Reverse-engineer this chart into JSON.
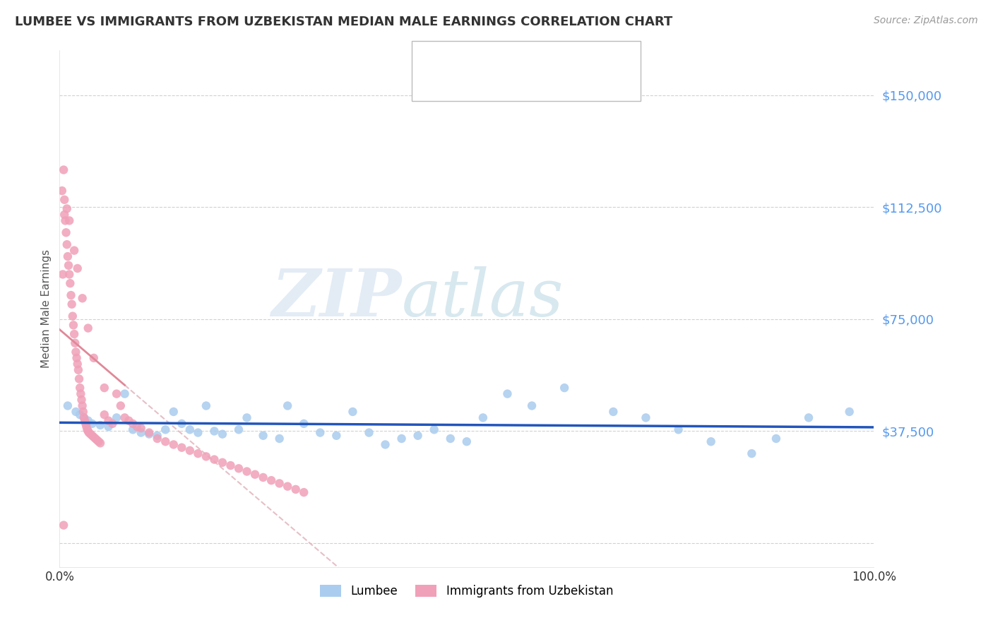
{
  "title": "LUMBEE VS IMMIGRANTS FROM UZBEKISTAN MEDIAN MALE EARNINGS CORRELATION CHART",
  "source": "Source: ZipAtlas.com",
  "ylabel": "Median Male Earnings",
  "xlim": [
    0,
    1.0
  ],
  "ylim": [
    -8000,
    165000
  ],
  "yticks": [
    0,
    37500,
    75000,
    112500,
    150000
  ],
  "ytick_labels": [
    "",
    "$37,500",
    "$75,000",
    "$112,500",
    "$150,000"
  ],
  "xtick_labels": [
    "0.0%",
    "100.0%"
  ],
  "background_color": "#ffffff",
  "grid_color": "#cccccc",
  "lumbee_color": "#aaccee",
  "uzbek_color": "#f0a0b8",
  "lumbee_line_color": "#2255bb",
  "uzbek_line_color": "#e08898",
  "uzbek_dash_color": "#e0b0b8",
  "watermark_zip": "ZIP",
  "watermark_atlas": "atlas",
  "lumbee_x": [
    0.01,
    0.02,
    0.025,
    0.03,
    0.035,
    0.04,
    0.05,
    0.06,
    0.07,
    0.08,
    0.09,
    0.1,
    0.11,
    0.12,
    0.13,
    0.14,
    0.15,
    0.16,
    0.17,
    0.18,
    0.19,
    0.2,
    0.22,
    0.23,
    0.25,
    0.27,
    0.28,
    0.3,
    0.32,
    0.34,
    0.36,
    0.38,
    0.4,
    0.42,
    0.44,
    0.46,
    0.48,
    0.5,
    0.52,
    0.55,
    0.58,
    0.62,
    0.68,
    0.72,
    0.76,
    0.8,
    0.85,
    0.88,
    0.92,
    0.97
  ],
  "lumbee_y": [
    46000,
    44000,
    43000,
    42000,
    41000,
    40000,
    39500,
    39000,
    42000,
    50000,
    38000,
    37000,
    36500,
    36000,
    38000,
    44000,
    40000,
    38000,
    37000,
    46000,
    37500,
    36500,
    38000,
    42000,
    36000,
    35000,
    46000,
    40000,
    37000,
    36000,
    44000,
    37000,
    33000,
    35000,
    36000,
    38000,
    35000,
    34000,
    42000,
    50000,
    46000,
    52000,
    44000,
    42000,
    38000,
    34000,
    30000,
    35000,
    42000,
    44000
  ],
  "uzbek_x": [
    0.004,
    0.005,
    0.006,
    0.007,
    0.008,
    0.009,
    0.01,
    0.011,
    0.012,
    0.013,
    0.014,
    0.015,
    0.016,
    0.017,
    0.018,
    0.019,
    0.02,
    0.021,
    0.022,
    0.023,
    0.024,
    0.025,
    0.026,
    0.027,
    0.028,
    0.029,
    0.03,
    0.031,
    0.032,
    0.033,
    0.034,
    0.035,
    0.036,
    0.038,
    0.04,
    0.042,
    0.044,
    0.046,
    0.048,
    0.05,
    0.055,
    0.06,
    0.065,
    0.07,
    0.075,
    0.08,
    0.085,
    0.09,
    0.095,
    0.1,
    0.11,
    0.12,
    0.13,
    0.14,
    0.15,
    0.16,
    0.17,
    0.18,
    0.19,
    0.2,
    0.21,
    0.22,
    0.23,
    0.24,
    0.25,
    0.26,
    0.27,
    0.28,
    0.29,
    0.3,
    0.003,
    0.006,
    0.009,
    0.012,
    0.018,
    0.022,
    0.028,
    0.035,
    0.042,
    0.055,
    0.005
  ],
  "uzbek_y": [
    90000,
    125000,
    110000,
    108000,
    104000,
    100000,
    96000,
    93000,
    90000,
    87000,
    83000,
    80000,
    76000,
    73000,
    70000,
    67000,
    64000,
    62000,
    60000,
    58000,
    55000,
    52000,
    50000,
    48000,
    46000,
    44000,
    42000,
    41000,
    40000,
    39000,
    38000,
    37500,
    37000,
    36500,
    36000,
    35500,
    35000,
    34500,
    34000,
    33500,
    43000,
    41000,
    40000,
    50000,
    46000,
    42000,
    41000,
    40000,
    39000,
    38500,
    37000,
    35000,
    34000,
    33000,
    32000,
    31000,
    30000,
    29000,
    28000,
    27000,
    26000,
    25000,
    24000,
    23000,
    22000,
    21000,
    20000,
    19000,
    18000,
    17000,
    118000,
    115000,
    112000,
    108000,
    98000,
    92000,
    82000,
    72000,
    62000,
    52000,
    6000
  ]
}
